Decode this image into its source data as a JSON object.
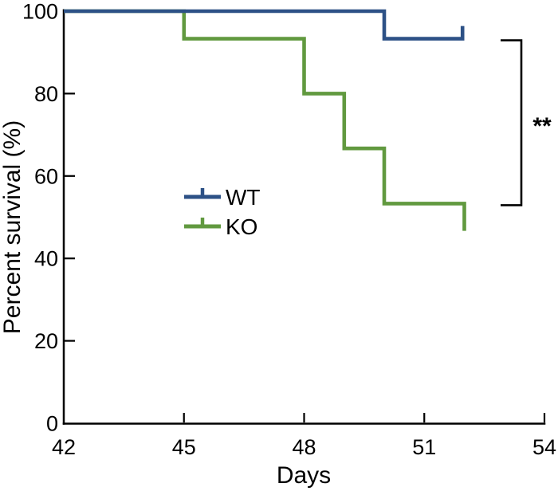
{
  "figure": {
    "background": "#ffffff",
    "axis_color": "#000000",
    "text_color": "#000000"
  },
  "chart_data": {
    "type": "line",
    "subtype": "kaplan_meier_step",
    "title": "",
    "xlabel": "Days",
    "ylabel": "Percent survival (%)",
    "xlim": [
      42,
      54
    ],
    "ylim": [
      0,
      100
    ],
    "x_ticks": [
      42,
      45,
      48,
      51,
      54
    ],
    "y_ticks": [
      0,
      20,
      40,
      60,
      80,
      100
    ],
    "grid": false,
    "legend_position": "inside-left-center",
    "series": [
      {
        "name": "WT",
        "color": "#2d5186",
        "points": [
          [
            42,
            100
          ],
          [
            50,
            100
          ],
          [
            50,
            93.3
          ],
          [
            52,
            93.3
          ]
        ],
        "censor_tick_at_end": true
      },
      {
        "name": "KO",
        "color": "#61993f",
        "points": [
          [
            42,
            100
          ],
          [
            45,
            100
          ],
          [
            45,
            93.3
          ],
          [
            48,
            93.3
          ],
          [
            48,
            80
          ],
          [
            49,
            80
          ],
          [
            49,
            66.7
          ],
          [
            50,
            66.7
          ],
          [
            50,
            53.3
          ],
          [
            52,
            53.3
          ],
          [
            52,
            46.7
          ]
        ],
        "censor_tick_at_end": false
      }
    ],
    "annotation": {
      "significance": "**",
      "bracket_top_pct": 93.3,
      "bracket_bottom_pct": 53.3
    }
  },
  "legend": {
    "items": [
      {
        "label": "WT",
        "color": "#2d5186"
      },
      {
        "label": "KO",
        "color": "#61993f"
      }
    ]
  }
}
